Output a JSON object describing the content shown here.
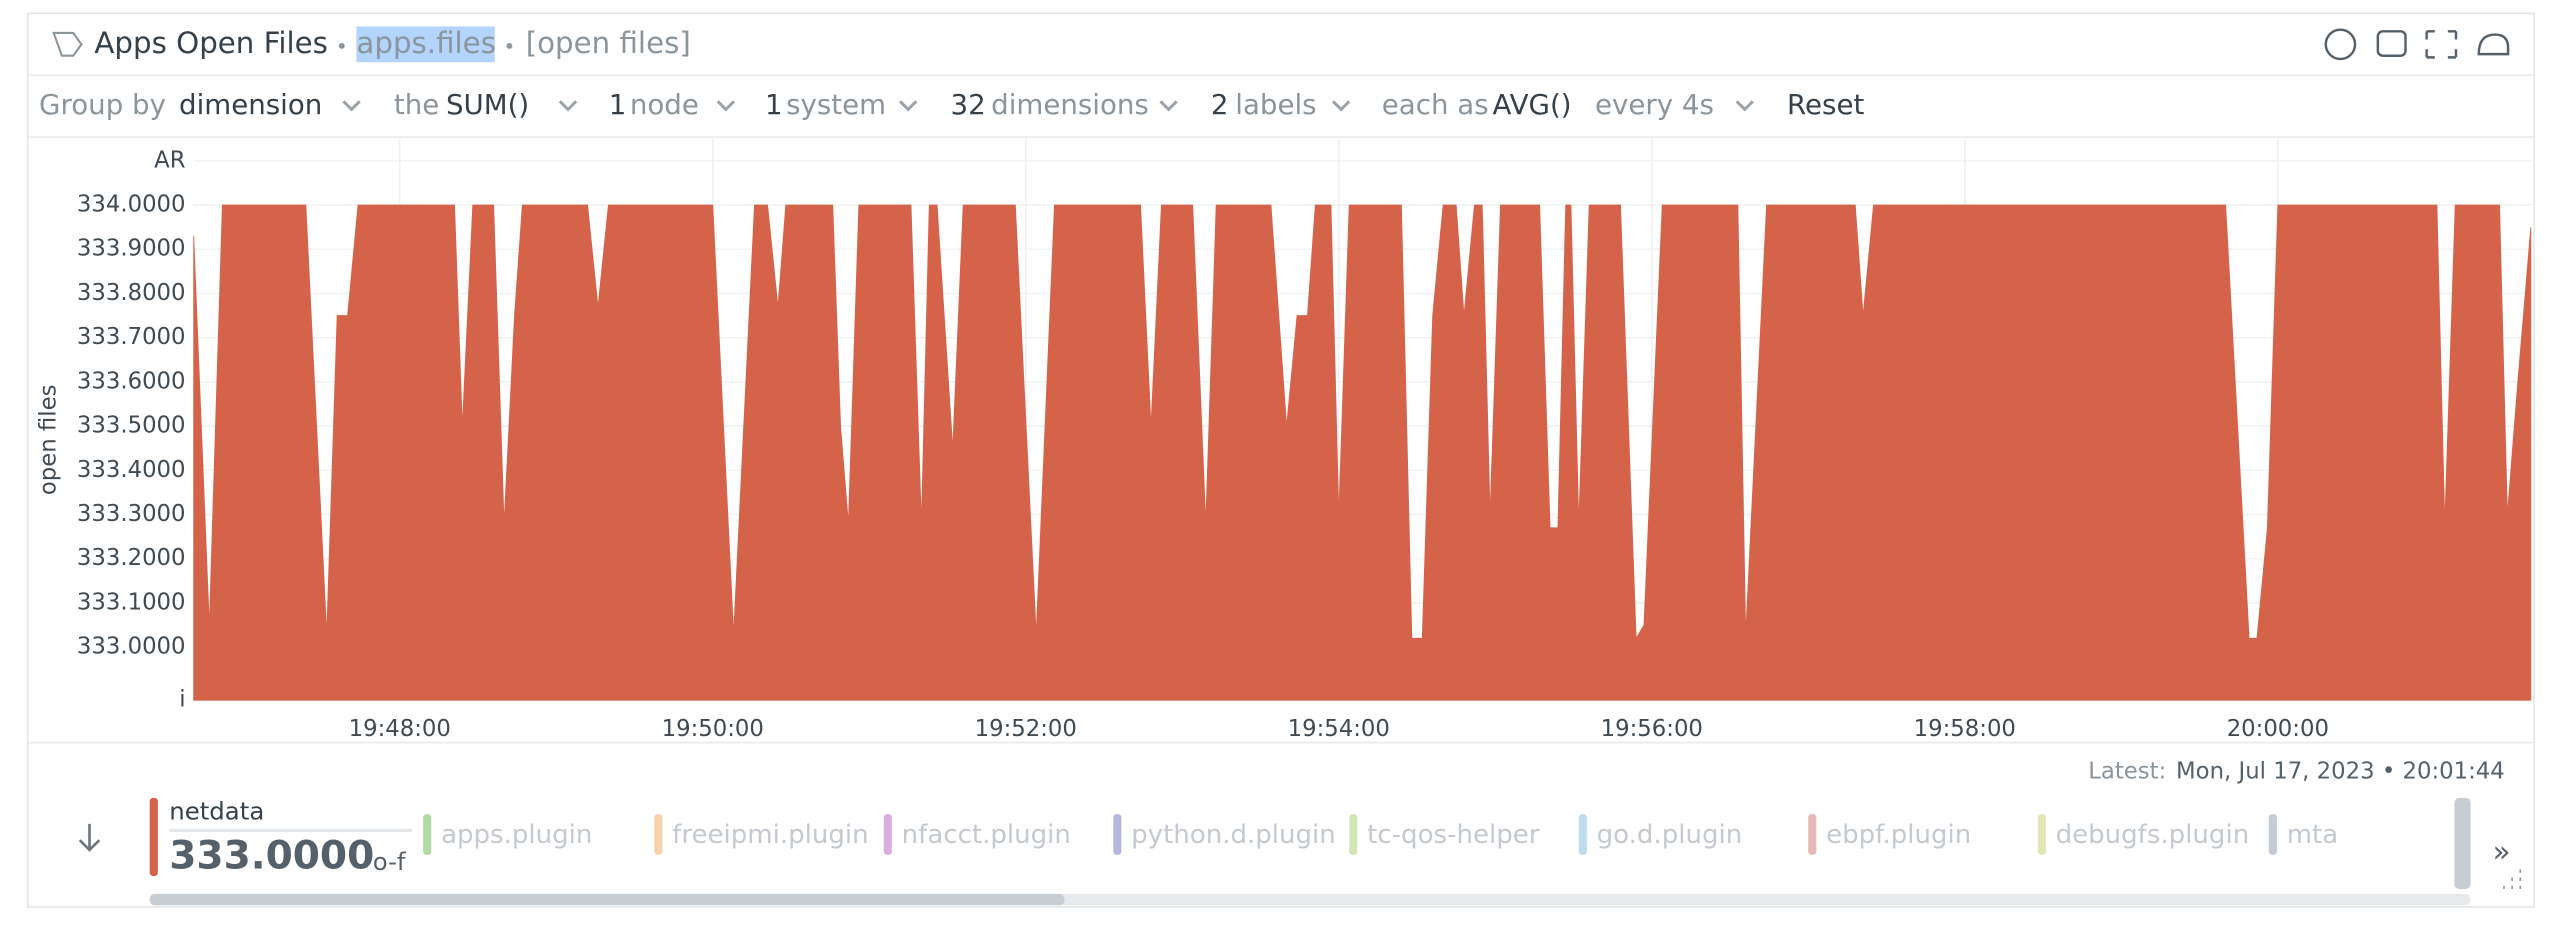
{
  "header": {
    "title": "Apps Open Files",
    "context": "apps.files",
    "units": "[open files]"
  },
  "toolbar": {
    "group_by_label": "Group by",
    "group_by": "dimension",
    "the": "the",
    "aggregation": "SUM()",
    "nodes_count": 1,
    "nodes": "node",
    "systems_count": 1,
    "systems": "system",
    "dimensions_count": 32,
    "dimensions": "dimensions",
    "labels_count": 2,
    "labels": "labels",
    "each_as": "each as",
    "time_aggregation": "AVG()",
    "every": "every 4s",
    "reset": "Reset"
  },
  "chart_data": {
    "type": "area",
    "y_label": "open files",
    "xlim": [
      "19:46:41",
      "20:01:37"
    ],
    "xticks": [
      "19:48:00",
      "19:50:00",
      "19:52:00",
      "19:54:00",
      "19:56:00",
      "19:58:00",
      "20:00:00"
    ],
    "ylim": [
      332.88,
      334.15
    ],
    "yticks": [
      {
        "value": 332.88,
        "label": "i"
      },
      {
        "value": 333,
        "label": "333.0000"
      },
      {
        "value": 333.1,
        "label": "333.1000"
      },
      {
        "value": 333.2,
        "label": "333.2000"
      },
      {
        "value": 333.3,
        "label": "333.3000"
      },
      {
        "value": 333.4,
        "label": "333.4000"
      },
      {
        "value": 333.5,
        "label": "333.5000"
      },
      {
        "value": 333.6,
        "label": "333.6000"
      },
      {
        "value": 333.7,
        "label": "333.7000"
      },
      {
        "value": 333.8,
        "label": "333.8000"
      },
      {
        "value": 333.9,
        "label": "333.9000"
      },
      {
        "value": 334,
        "label": "334.0000"
      },
      {
        "value": 334.1,
        "label": "AR"
      }
    ],
    "grid": true,
    "x": [
      "19:46:41",
      "19:46:47",
      "19:46:52",
      "19:47:24",
      "19:47:32",
      "19:47:36",
      "19:47:40",
      "19:47:44",
      "19:48:21",
      "19:48:24",
      "19:48:28",
      "19:48:36",
      "19:48:40",
      "19:48:44",
      "19:48:47",
      "19:49:12",
      "19:49:16",
      "19:49:20",
      "19:50:00",
      "19:50:08",
      "19:50:16",
      "19:50:21",
      "19:50:25",
      "19:50:28",
      "19:50:46",
      "19:50:49",
      "19:50:52",
      "19:50:56",
      "19:51:16",
      "19:51:20",
      "19:51:23",
      "19:51:26",
      "19:51:32",
      "19:51:36",
      "19:51:56",
      "19:52:04",
      "19:52:11",
      "19:52:44",
      "19:52:48",
      "19:52:52",
      "19:53:04",
      "19:53:09",
      "19:53:13",
      "19:53:34",
      "19:53:40",
      "19:53:44",
      "19:53:48",
      "19:53:51",
      "19:53:57",
      "19:54:00",
      "19:54:04",
      "19:54:24",
      "19:54:28",
      "19:54:32",
      "19:54:36",
      "19:54:40",
      "19:54:45",
      "19:54:48",
      "19:54:52",
      "19:54:55",
      "19:54:58",
      "19:55:02",
      "19:55:17",
      "19:55:21",
      "19:55:24",
      "19:55:27",
      "19:55:29",
      "19:55:32",
      "19:55:36",
      "19:55:48",
      "19:55:54",
      "19:55:57",
      "19:56:04",
      "19:56:33",
      "19:56:36",
      "19:56:44",
      "19:57:18",
      "19:57:21",
      "19:57:25",
      "19:59:40",
      "19:59:49",
      "19:59:52",
      "19:59:56",
      "20:00:00",
      "20:01:01",
      "20:01:04",
      "20:01:08",
      "20:01:25",
      "20:01:28",
      "20:01:32",
      "20:01:37"
    ],
    "series": [
      {
        "name": "netdata",
        "color": "#d4634a",
        "values": [
          333.93,
          333.05,
          334,
          334,
          333.03,
          333.75,
          333.75,
          334,
          334,
          333.5,
          334,
          334,
          333.28,
          333.75,
          334,
          334,
          333.77,
          334,
          334,
          333.03,
          334,
          334,
          333.77,
          334,
          334,
          333.5,
          333.28,
          334,
          334,
          333.28,
          334,
          334,
          333.45,
          334,
          334,
          333.03,
          334,
          334,
          333.5,
          334,
          334,
          333.28,
          334,
          334,
          333.5,
          333.75,
          333.75,
          334,
          334,
          333.3,
          334,
          334,
          333.02,
          333.02,
          333.75,
          334,
          334,
          333.75,
          334,
          334,
          333.3,
          334,
          334,
          333.27,
          333.27,
          334,
          334,
          333.28,
          334,
          334,
          333.02,
          333.05,
          334,
          334,
          333.03,
          334,
          334,
          333.75,
          334,
          334,
          333.02,
          333.02,
          333.27,
          334,
          334,
          333.28,
          334,
          334,
          333.3,
          333.6,
          333.95
        ]
      }
    ]
  },
  "legend": {
    "selected_value": "333.0000",
    "selected_unit": "o-f",
    "others": [
      {
        "name": "apps.plugin",
        "color": "#b5d9a3"
      },
      {
        "name": "freeipmi.plugin",
        "color": "#f7d3ad"
      },
      {
        "name": "nfacct.plugin",
        "color": "#d9b0dd"
      },
      {
        "name": "python.d.plugin",
        "color": "#b4b8e0"
      },
      {
        "name": "tc-qos-helper",
        "color": "#d3e6b8"
      },
      {
        "name": "go.d.plugin",
        "color": "#bcdcef"
      },
      {
        "name": "ebpf.plugin",
        "color": "#e8b8b6"
      },
      {
        "name": "debugfs.plugin",
        "color": "#e2e6b4"
      },
      {
        "name": "mta",
        "color": "#c6ccd6"
      }
    ]
  },
  "footer": {
    "latest_label": "Latest:",
    "latest": "Mon, Jul 17, 2023 • 20:01:44"
  }
}
